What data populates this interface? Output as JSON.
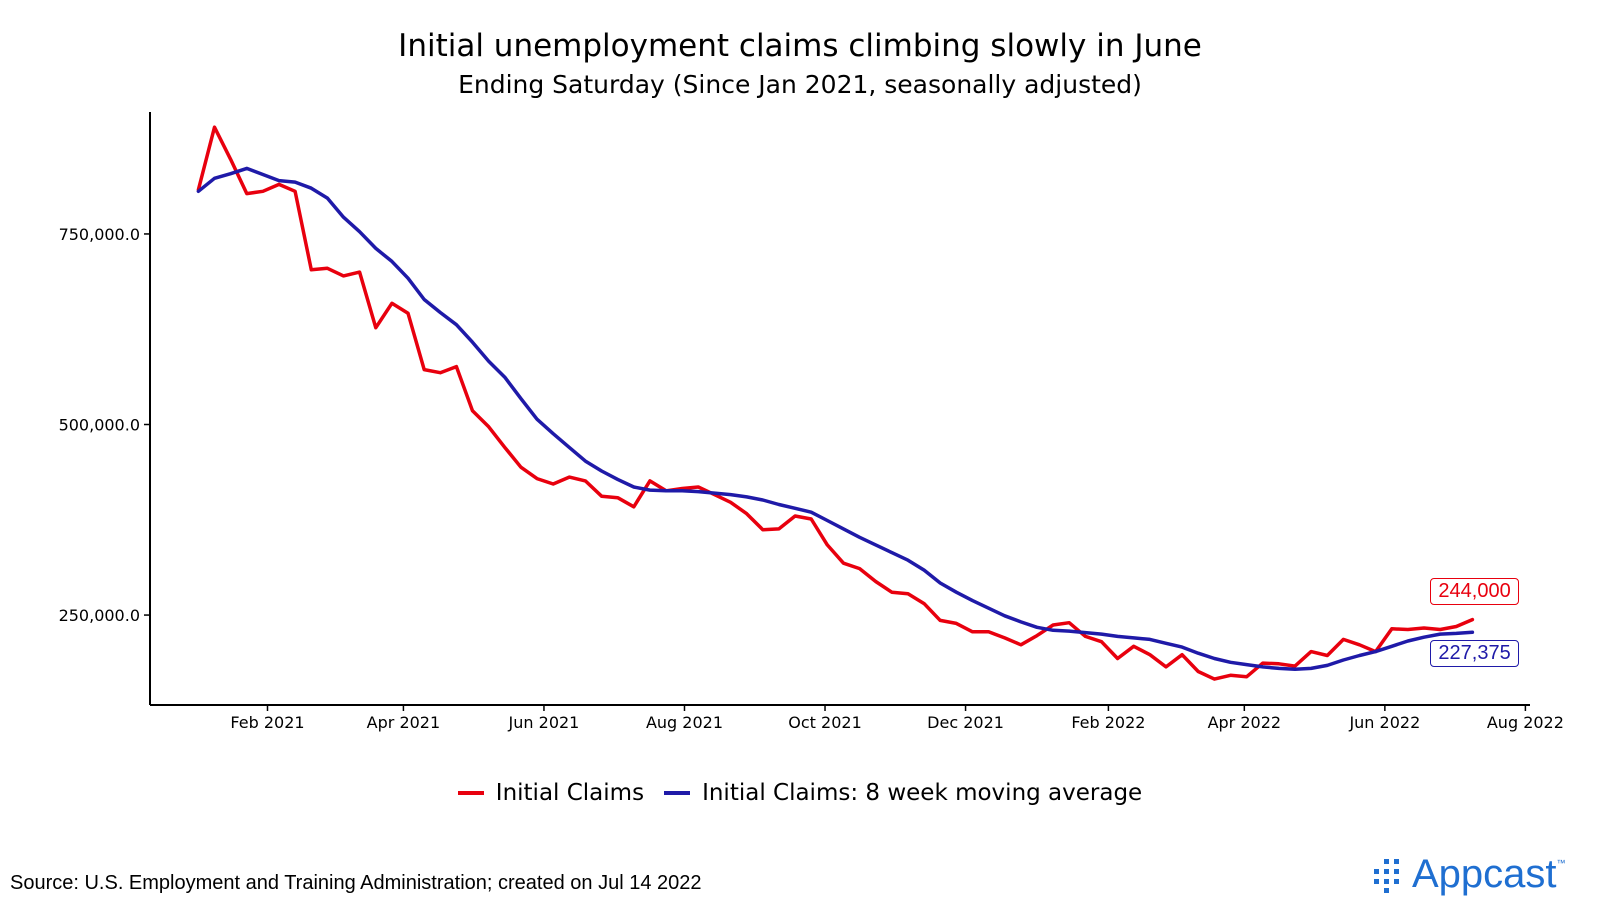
{
  "colors": {
    "claims": "#e8000e",
    "average": "#1f1aa8",
    "brand": "#1f6fd1"
  },
  "source": "Source: U.S. Employment and Training Administration; created on Jul 14 2022",
  "brand": {
    "name": "Appcast",
    "tm": "™",
    "logo_icon": "dot-grid-logo-icon"
  },
  "end_labels": {
    "claims": "244,000",
    "average": "227,375"
  },
  "chart_data": {
    "type": "line",
    "title": "Initial unemployment claims climbing slowly in June",
    "subtitle": "Ending Saturday (Since Jan 2021, seasonally adjusted)",
    "xlabel": "",
    "ylabel": "",
    "x_ticks": [
      "Feb 2021",
      "Apr 2021",
      "Jun 2021",
      "Aug 2021",
      "Oct 2021",
      "Dec 2021",
      "Feb 2022",
      "Apr 2022",
      "Jun 2022",
      "Aug 2022"
    ],
    "y_ticks": [
      "250,000.0",
      "500,000.0",
      "750,000.0"
    ],
    "y_tick_values": [
      250000,
      500000,
      750000
    ],
    "xlim": [
      "2020-12-12",
      "2022-08-03"
    ],
    "ylim": [
      132000,
      910000
    ],
    "grid": false,
    "legend_position": "bottom",
    "series": [
      {
        "name": "Initial Claims",
        "points": [
          [
            "2021-01-02",
            808000
          ],
          [
            "2021-01-09",
            890000
          ],
          [
            "2021-01-16",
            848000
          ],
          [
            "2021-01-23",
            803000
          ],
          [
            "2021-01-30",
            806000
          ],
          [
            "2021-02-06",
            815000
          ],
          [
            "2021-02-13",
            806000
          ],
          [
            "2021-02-20",
            703000
          ],
          [
            "2021-02-27",
            705000
          ],
          [
            "2021-03-06",
            695000
          ],
          [
            "2021-03-13",
            700000
          ],
          [
            "2021-03-20",
            627000
          ],
          [
            "2021-03-27",
            659000
          ],
          [
            "2021-04-03",
            646000
          ],
          [
            "2021-04-10",
            572000
          ],
          [
            "2021-04-17",
            568000
          ],
          [
            "2021-04-24",
            576000
          ],
          [
            "2021-05-01",
            518000
          ],
          [
            "2021-05-08",
            497000
          ],
          [
            "2021-05-15",
            470000
          ],
          [
            "2021-05-22",
            444000
          ],
          [
            "2021-05-29",
            429000
          ],
          [
            "2021-06-05",
            422000
          ],
          [
            "2021-06-12",
            431000
          ],
          [
            "2021-06-19",
            426000
          ],
          [
            "2021-06-26",
            406000
          ],
          [
            "2021-07-03",
            404000
          ],
          [
            "2021-07-10",
            392000
          ],
          [
            "2021-07-17",
            426000
          ],
          [
            "2021-07-24",
            413000
          ],
          [
            "2021-07-31",
            416000
          ],
          [
            "2021-08-07",
            418000
          ],
          [
            "2021-08-14",
            408000
          ],
          [
            "2021-08-21",
            398000
          ],
          [
            "2021-08-28",
            383000
          ],
          [
            "2021-09-04",
            362000
          ],
          [
            "2021-09-11",
            363000
          ],
          [
            "2021-09-18",
            380000
          ],
          [
            "2021-09-25",
            376000
          ],
          [
            "2021-10-02",
            342000
          ],
          [
            "2021-10-09",
            318000
          ],
          [
            "2021-10-16",
            311000
          ],
          [
            "2021-10-23",
            294000
          ],
          [
            "2021-10-30",
            280000
          ],
          [
            "2021-11-06",
            278000
          ],
          [
            "2021-11-13",
            265000
          ],
          [
            "2021-11-20",
            243000
          ],
          [
            "2021-11-27",
            239000
          ],
          [
            "2021-12-04",
            228000
          ],
          [
            "2021-12-11",
            228000
          ],
          [
            "2021-12-18",
            220000
          ],
          [
            "2021-12-25",
            211000
          ],
          [
            "2022-01-01",
            223000
          ],
          [
            "2022-01-08",
            237000
          ],
          [
            "2022-01-15",
            240000
          ],
          [
            "2022-01-22",
            222000
          ],
          [
            "2022-01-29",
            215000
          ],
          [
            "2022-02-05",
            193000
          ],
          [
            "2022-02-12",
            209000
          ],
          [
            "2022-02-19",
            198000
          ],
          [
            "2022-02-26",
            182000
          ],
          [
            "2022-03-05",
            198000
          ],
          [
            "2022-03-12",
            176000
          ],
          [
            "2022-03-19",
            166000
          ],
          [
            "2022-03-26",
            171000
          ],
          [
            "2022-04-02",
            169000
          ],
          [
            "2022-04-09",
            187000
          ],
          [
            "2022-04-16",
            186000
          ],
          [
            "2022-04-23",
            183000
          ],
          [
            "2022-04-30",
            202000
          ],
          [
            "2022-05-07",
            197000
          ],
          [
            "2022-05-14",
            218000
          ],
          [
            "2022-05-21",
            211000
          ],
          [
            "2022-05-28",
            202000
          ],
          [
            "2022-06-04",
            232000
          ],
          [
            "2022-06-11",
            231000
          ],
          [
            "2022-06-18",
            233000
          ],
          [
            "2022-06-25",
            231000
          ],
          [
            "2022-07-02",
            235000
          ],
          [
            "2022-07-09",
            244000
          ]
        ]
      },
      {
        "name": "Initial Claims: 8 week moving average",
        "points": [
          [
            "2021-01-02",
            806000
          ],
          [
            "2021-01-09",
            823000
          ],
          [
            "2021-01-16",
            829000
          ],
          [
            "2021-01-23",
            836000
          ],
          [
            "2021-01-30",
            828000
          ],
          [
            "2021-02-06",
            820000
          ],
          [
            "2021-02-13",
            818000
          ],
          [
            "2021-02-20",
            810000
          ],
          [
            "2021-02-27",
            797000
          ],
          [
            "2021-03-06",
            772000
          ],
          [
            "2021-03-13",
            753000
          ],
          [
            "2021-03-20",
            731000
          ],
          [
            "2021-03-27",
            714000
          ],
          [
            "2021-04-03",
            692000
          ],
          [
            "2021-04-10",
            664000
          ],
          [
            "2021-04-17",
            647000
          ],
          [
            "2021-04-24",
            631000
          ],
          [
            "2021-05-01",
            608000
          ],
          [
            "2021-05-08",
            583000
          ],
          [
            "2021-05-15",
            562000
          ],
          [
            "2021-05-22",
            534000
          ],
          [
            "2021-05-29",
            507000
          ],
          [
            "2021-06-05",
            488000
          ],
          [
            "2021-06-12",
            470000
          ],
          [
            "2021-06-19",
            452000
          ],
          [
            "2021-06-26",
            439000
          ],
          [
            "2021-07-03",
            428000
          ],
          [
            "2021-07-10",
            418000
          ],
          [
            "2021-07-17",
            414000
          ],
          [
            "2021-07-24",
            413000
          ],
          [
            "2021-07-31",
            413000
          ],
          [
            "2021-08-07",
            412000
          ],
          [
            "2021-08-14",
            410000
          ],
          [
            "2021-08-21",
            408000
          ],
          [
            "2021-08-28",
            405000
          ],
          [
            "2021-09-04",
            401000
          ],
          [
            "2021-09-11",
            395000
          ],
          [
            "2021-09-18",
            390000
          ],
          [
            "2021-09-25",
            385000
          ],
          [
            "2021-10-02",
            374000
          ],
          [
            "2021-10-09",
            363000
          ],
          [
            "2021-10-16",
            352000
          ],
          [
            "2021-10-23",
            342000
          ],
          [
            "2021-10-30",
            332000
          ],
          [
            "2021-11-06",
            322000
          ],
          [
            "2021-11-13",
            309000
          ],
          [
            "2021-11-20",
            292000
          ],
          [
            "2021-11-27",
            280000
          ],
          [
            "2021-12-04",
            269000
          ],
          [
            "2021-12-11",
            259000
          ],
          [
            "2021-12-18",
            249000
          ],
          [
            "2021-12-25",
            241000
          ],
          [
            "2022-01-01",
            234000
          ],
          [
            "2022-01-08",
            230000
          ],
          [
            "2022-01-15",
            229000
          ],
          [
            "2022-01-22",
            227000
          ],
          [
            "2022-01-29",
            225000
          ],
          [
            "2022-02-05",
            222000
          ],
          [
            "2022-02-12",
            220000
          ],
          [
            "2022-02-19",
            218000
          ],
          [
            "2022-02-26",
            213000
          ],
          [
            "2022-03-05",
            208000
          ],
          [
            "2022-03-12",
            200000
          ],
          [
            "2022-03-19",
            193000
          ],
          [
            "2022-03-26",
            188000
          ],
          [
            "2022-04-02",
            185000
          ],
          [
            "2022-04-09",
            182000
          ],
          [
            "2022-04-16",
            180000
          ],
          [
            "2022-04-23",
            179000
          ],
          [
            "2022-04-30",
            180000
          ],
          [
            "2022-05-07",
            184000
          ],
          [
            "2022-05-14",
            191000
          ],
          [
            "2022-05-21",
            197000
          ],
          [
            "2022-05-28",
            202000
          ],
          [
            "2022-06-04",
            209000
          ],
          [
            "2022-06-11",
            216000
          ],
          [
            "2022-06-18",
            221000
          ],
          [
            "2022-06-25",
            225000
          ],
          [
            "2022-07-02",
            226000
          ],
          [
            "2022-07-09",
            227375
          ]
        ]
      }
    ]
  }
}
